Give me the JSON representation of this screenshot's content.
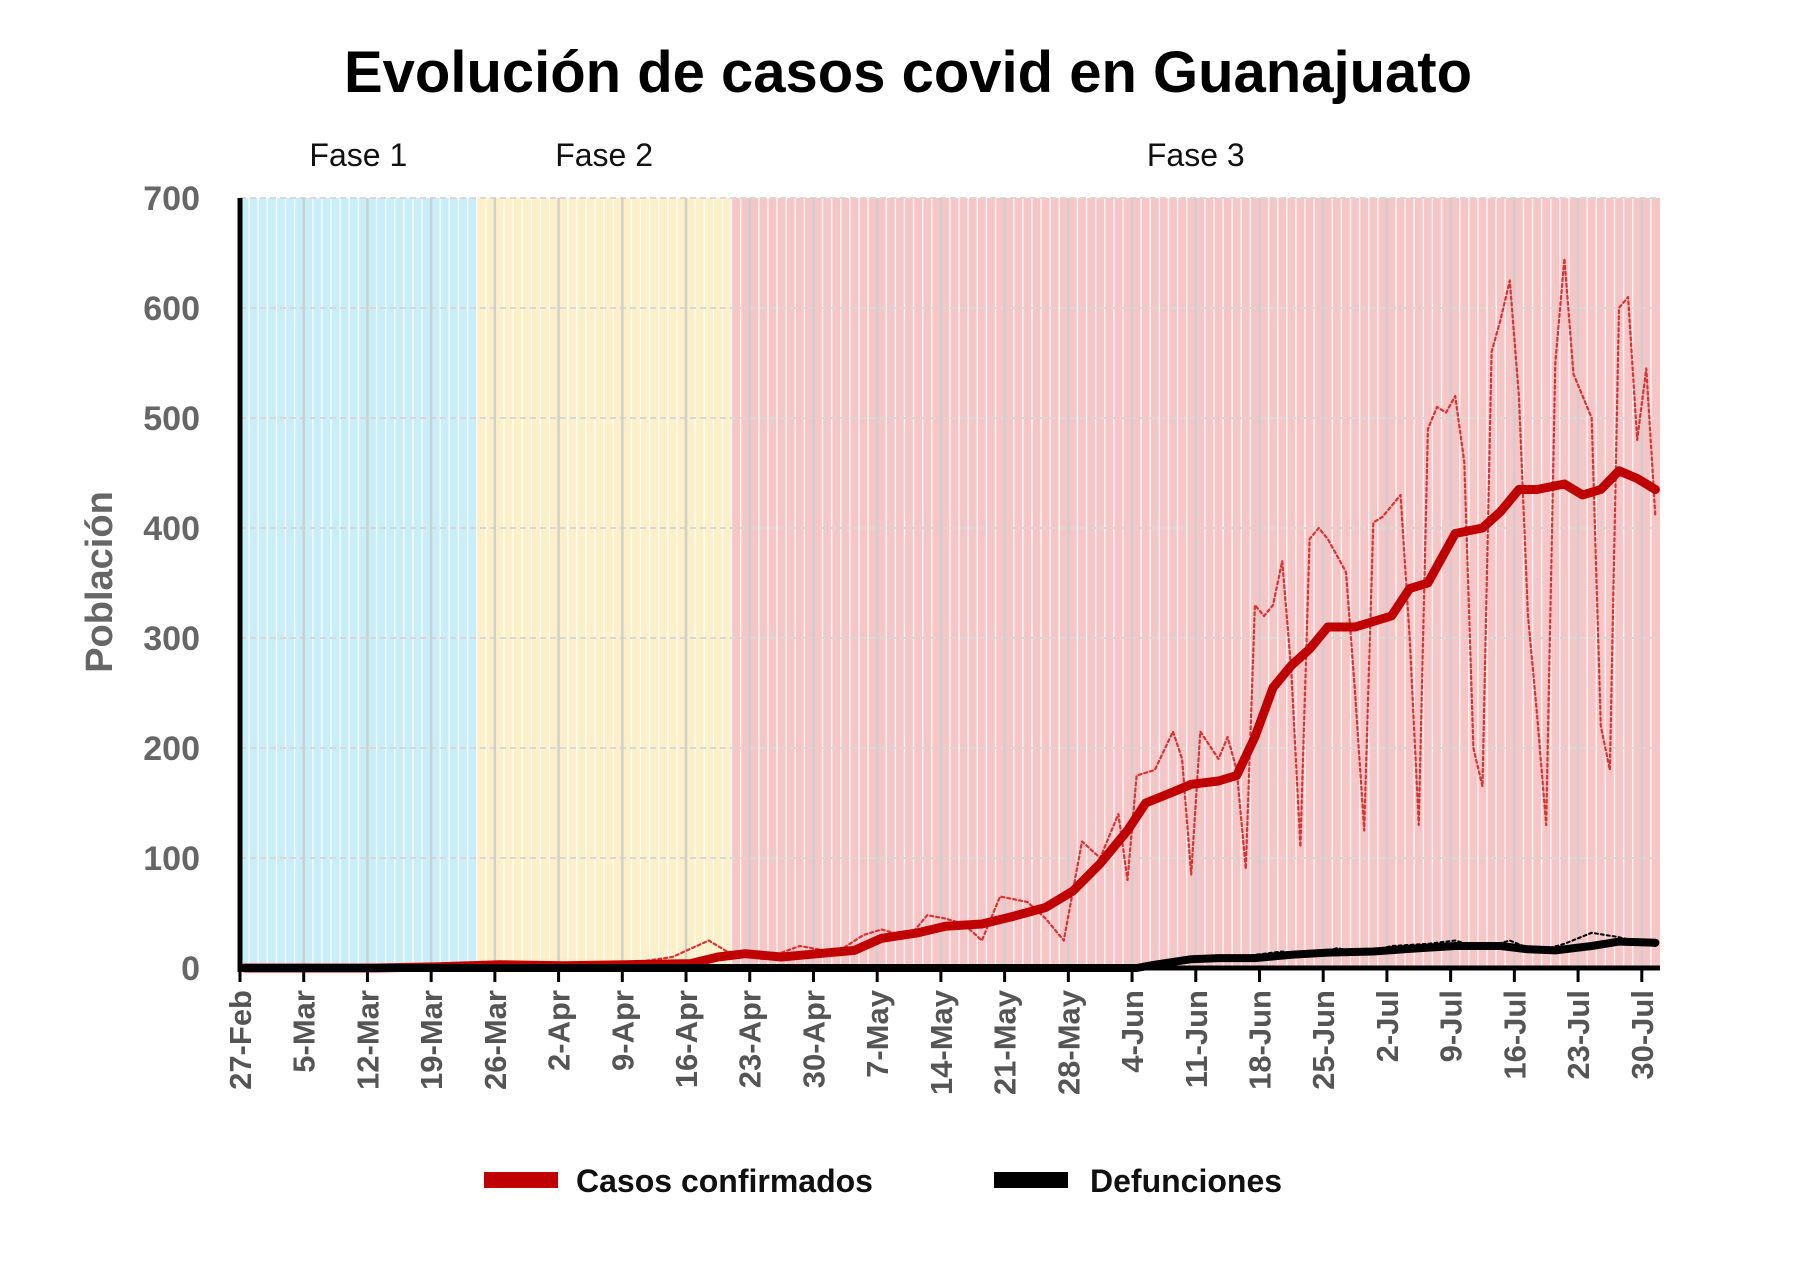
{
  "chart_data": {
    "type": "line",
    "title": "Evolución de casos covid en Guanajuato",
    "ylabel": "Población",
    "ylim": [
      0,
      700
    ],
    "yticks": [
      "0",
      "100",
      "200",
      "300",
      "400",
      "500",
      "600",
      "700"
    ],
    "grid": true,
    "legend_position": "bottom",
    "x_start": "27-Feb",
    "x_end": "31-Jul",
    "x_tick_labels": [
      "27-Feb",
      "5-Mar",
      "12-Mar",
      "19-Mar",
      "26-Mar",
      "2-Apr",
      "9-Apr",
      "16-Apr",
      "23-Apr",
      "30-Apr",
      "7-May",
      "14-May",
      "21-May",
      "28-May",
      "4-Jun",
      "11-Jun",
      "18-Jun",
      "25-Jun",
      "2-Jul",
      "9-Jul",
      "16-Jul",
      "23-Jul",
      "30-Jul"
    ],
    "phases": [
      {
        "label": "Fase 1",
        "start": "27-Feb",
        "end": "23-Mar",
        "color": "#c7eef9"
      },
      {
        "label": "Fase 2",
        "start": "24-Mar",
        "end": "20-Apr",
        "color": "#fbf0c8"
      },
      {
        "label": "Fase 3",
        "start": "21-Apr",
        "end": "31-Jul",
        "color": "#f6c6c6"
      }
    ],
    "series": [
      {
        "name": "Casos confirmados",
        "color": "#c00000",
        "points": [
          [
            "27-Feb",
            0
          ],
          [
            "12-Mar",
            0
          ],
          [
            "19-Mar",
            1
          ],
          [
            "26-Mar",
            3
          ],
          [
            "2-Apr",
            2
          ],
          [
            "9-Apr",
            3
          ],
          [
            "16-Apr",
            4
          ],
          [
            "19-Apr",
            10
          ],
          [
            "22-Apr",
            13
          ],
          [
            "26-Apr",
            10
          ],
          [
            "30-Apr",
            13
          ],
          [
            "4-May",
            16
          ],
          [
            "7-May",
            27
          ],
          [
            "11-May",
            32
          ],
          [
            "14-May",
            38
          ],
          [
            "18-May",
            40
          ],
          [
            "21-May",
            46
          ],
          [
            "25-May",
            55
          ],
          [
            "28-May",
            70
          ],
          [
            "31-May",
            95
          ],
          [
            "3-Jun",
            125
          ],
          [
            "5-Jun",
            150
          ],
          [
            "8-Jun",
            160
          ],
          [
            "10-Jun",
            167
          ],
          [
            "13-Jun",
            170
          ],
          [
            "15-Jun",
            175
          ],
          [
            "17-Jun",
            210
          ],
          [
            "19-Jun",
            255
          ],
          [
            "21-Jun",
            275
          ],
          [
            "23-Jun",
            290
          ],
          [
            "25-Jun",
            310
          ],
          [
            "28-Jun",
            310
          ],
          [
            "2-Jul",
            320
          ],
          [
            "4-Jul",
            345
          ],
          [
            "6-Jul",
            350
          ],
          [
            "9-Jul",
            395
          ],
          [
            "12-Jul",
            400
          ],
          [
            "14-Jul",
            415
          ],
          [
            "16-Jul",
            435
          ],
          [
            "18-Jul",
            435
          ],
          [
            "21-Jul",
            440
          ],
          [
            "23-Jul",
            430
          ],
          [
            "25-Jul",
            435
          ],
          [
            "27-Jul",
            452
          ],
          [
            "29-Jul",
            445
          ],
          [
            "31-Jul",
            435
          ]
        ]
      },
      {
        "name": "Casos confirmados (diario)",
        "color": "#e03030",
        "points": [
          [
            "27-Feb",
            0
          ],
          [
            "19-Mar",
            2
          ],
          [
            "26-Mar",
            3
          ],
          [
            "9-Apr",
            4
          ],
          [
            "14-Apr",
            10
          ],
          [
            "18-Apr",
            25
          ],
          [
            "20-Apr",
            15
          ],
          [
            "24-Apr",
            8
          ],
          [
            "28-Apr",
            20
          ],
          [
            "2-May",
            14
          ],
          [
            "5-May",
            30
          ],
          [
            "7-May",
            35
          ],
          [
            "10-May",
            28
          ],
          [
            "12-May",
            48
          ],
          [
            "14-May",
            45
          ],
          [
            "16-May",
            40
          ],
          [
            "18-May",
            25
          ],
          [
            "20-May",
            65
          ],
          [
            "23-May",
            60
          ],
          [
            "25-May",
            45
          ],
          [
            "27-May",
            25
          ],
          [
            "29-May",
            115
          ],
          [
            "31-May",
            100
          ],
          [
            "2-Jun",
            140
          ],
          [
            "3-Jun",
            80
          ],
          [
            "4-Jun",
            175
          ],
          [
            "6-Jun",
            180
          ],
          [
            "8-Jun",
            215
          ],
          [
            "9-Jun",
            190
          ],
          [
            "10-Jun",
            85
          ],
          [
            "11-Jun",
            215
          ],
          [
            "13-Jun",
            190
          ],
          [
            "14-Jun",
            210
          ],
          [
            "15-Jun",
            180
          ],
          [
            "16-Jun",
            90
          ],
          [
            "17-Jun",
            330
          ],
          [
            "18-Jun",
            320
          ],
          [
            "19-Jun",
            330
          ],
          [
            "20-Jun",
            370
          ],
          [
            "21-Jun",
            270
          ],
          [
            "22-Jun",
            110
          ],
          [
            "23-Jun",
            390
          ],
          [
            "24-Jun",
            400
          ],
          [
            "25-Jun",
            390
          ],
          [
            "27-Jun",
            360
          ],
          [
            "28-Jun",
            250
          ],
          [
            "29-Jun",
            125
          ],
          [
            "30-Jun",
            405
          ],
          [
            "1-Jul",
            410
          ],
          [
            "2-Jul",
            420
          ],
          [
            "3-Jul",
            430
          ],
          [
            "4-Jul",
            300
          ],
          [
            "5-Jul",
            130
          ],
          [
            "6-Jul",
            490
          ],
          [
            "7-Jul",
            510
          ],
          [
            "8-Jul",
            505
          ],
          [
            "9-Jul",
            520
          ],
          [
            "10-Jul",
            460
          ],
          [
            "11-Jul",
            200
          ],
          [
            "12-Jul",
            165
          ],
          [
            "13-Jul",
            560
          ],
          [
            "14-Jul",
            590
          ],
          [
            "15-Jul",
            625
          ],
          [
            "16-Jul",
            520
          ],
          [
            "17-Jul",
            320
          ],
          [
            "18-Jul",
            230
          ],
          [
            "19-Jul",
            130
          ],
          [
            "20-Jul",
            550
          ],
          [
            "21-Jul",
            645
          ],
          [
            "22-Jul",
            540
          ],
          [
            "23-Jul",
            520
          ],
          [
            "24-Jul",
            500
          ],
          [
            "25-Jul",
            220
          ],
          [
            "26-Jul",
            180
          ],
          [
            "27-Jul",
            600
          ],
          [
            "28-Jul",
            610
          ],
          [
            "29-Jul",
            480
          ],
          [
            "30-Jul",
            545
          ],
          [
            "31-Jul",
            410
          ]
        ]
      },
      {
        "name": "Defunciones",
        "color": "#000000",
        "points": [
          [
            "27-Feb",
            0
          ],
          [
            "4-Jun",
            0
          ],
          [
            "6-Jun",
            3
          ],
          [
            "10-Jun",
            8
          ],
          [
            "13-Jun",
            9
          ],
          [
            "17-Jun",
            9
          ],
          [
            "21-Jun",
            12
          ],
          [
            "25-Jun",
            14
          ],
          [
            "30-Jun",
            15
          ],
          [
            "5-Jul",
            18
          ],
          [
            "9-Jul",
            20
          ],
          [
            "14-Jul",
            20
          ],
          [
            "17-Jul",
            17
          ],
          [
            "20-Jul",
            16
          ],
          [
            "24-Jul",
            20
          ],
          [
            "27-Jul",
            24
          ],
          [
            "31-Jul",
            23
          ]
        ]
      },
      {
        "name": "Defunciones (diario)",
        "color": "#000000",
        "points": [
          [
            "27-Feb",
            0
          ],
          [
            "4-Jun",
            0
          ],
          [
            "6-Jun",
            5
          ],
          [
            "10-Jun",
            10
          ],
          [
            "14-Jun",
            8
          ],
          [
            "17-Jun",
            12
          ],
          [
            "20-Jun",
            15
          ],
          [
            "23-Jun",
            12
          ],
          [
            "26-Jun",
            18
          ],
          [
            "29-Jun",
            14
          ],
          [
            "2-Jul",
            20
          ],
          [
            "6-Jul",
            22
          ],
          [
            "9-Jul",
            25
          ],
          [
            "12-Jul",
            18
          ],
          [
            "15-Jul",
            25
          ],
          [
            "18-Jul",
            15
          ],
          [
            "21-Jul",
            22
          ],
          [
            "24-Jul",
            32
          ],
          [
            "27-Jul",
            28
          ],
          [
            "31-Jul",
            20
          ]
        ]
      }
    ],
    "legend": [
      {
        "label": "Casos confirmados",
        "color": "#c00000"
      },
      {
        "label": "Defunciones",
        "color": "#000000"
      }
    ]
  }
}
